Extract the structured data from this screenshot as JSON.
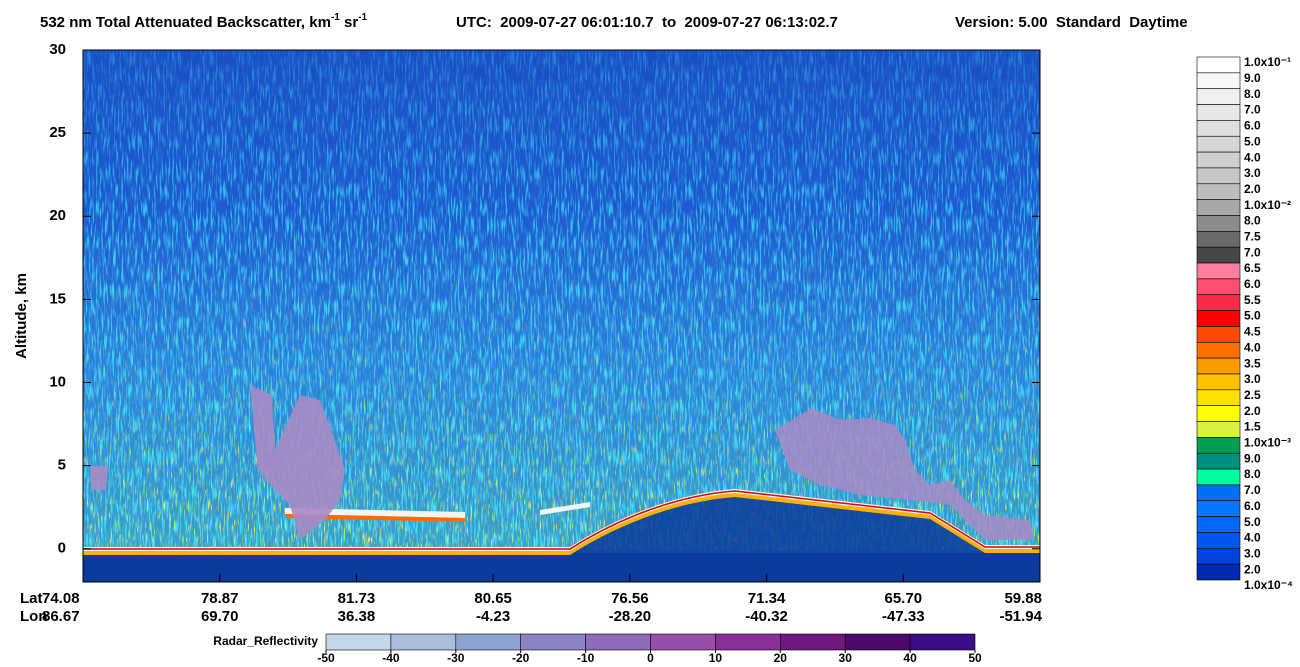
{
  "chart_data": {
    "type": "heatmap",
    "title_parts": [
      "532 nm Total Attenuated Backscatter, km",
      "-1",
      " sr",
      "-1"
    ],
    "time_range": "UTC:  2009-07-27 06:01:10.7  to  2009-07-27 06:13:02.7",
    "version": "Version: 5.00  Standard  Daytime",
    "ylabel": "Altitude, km",
    "ylim": [
      -2,
      30
    ],
    "yticks": [
      0,
      5,
      10,
      15,
      20,
      25,
      30
    ],
    "x_ticks": {
      "lat_label": "Lat",
      "lon_label": "Lon",
      "lat": [
        "74.08",
        "78.87",
        "81.73",
        "80.65",
        "76.56",
        "71.34",
        "65.70",
        "59.88"
      ],
      "lon": [
        "86.67",
        "69.70",
        "36.38",
        "-4.23",
        "-28.20",
        "-40.32",
        "-47.33",
        "-51.94"
      ]
    },
    "colorbar": {
      "labels": [
        "1.0x10⁻¹",
        "9.0",
        "8.0",
        "7.0",
        "6.0",
        "5.0",
        "4.0",
        "3.0",
        "2.0",
        "1.0x10⁻²",
        "8.0",
        "7.5",
        "7.0",
        "6.5",
        "6.0",
        "5.5",
        "5.0",
        "4.5",
        "4.0",
        "3.5",
        "3.0",
        "2.5",
        "2.0",
        "1.5",
        "1.0x10⁻³",
        "9.0",
        "8.0",
        "7.0",
        "6.0",
        "5.0",
        "4.0",
        "3.0",
        "2.0",
        "1.0x10⁻⁴"
      ],
      "colors": [
        "#ffffff",
        "#f7f7f7",
        "#efefef",
        "#e7e7e7",
        "#dfdfdf",
        "#d7d7d7",
        "#cfcfcf",
        "#c7c7c7",
        "#bdbdbd",
        "#a8a8a8",
        "#8c8c8c",
        "#6a6a6a",
        "#474747",
        "#ff7fa0",
        "#ff4f70",
        "#ff2a48",
        "#ff0000",
        "#ff4a00",
        "#ff7000",
        "#ff9a00",
        "#ffc000",
        "#ffe000",
        "#ffff00",
        "#d8f040",
        "#00a050",
        "#009080",
        "#00ffa0",
        "#0070f0",
        "#0078ff",
        "#0068f8",
        "#0058f0",
        "#0044e0",
        "#0028b0"
      ]
    },
    "radar_bar": {
      "label": "Radar_Reflectivity",
      "ticks": [
        -50,
        -40,
        -30,
        -20,
        -10,
        0,
        10,
        20,
        30,
        40,
        50
      ],
      "colors": [
        "#c6d6ea",
        "#a9bedd",
        "#8fa3d2",
        "#8b84c4",
        "#8e6cb9",
        "#9450ab",
        "#8a2e98",
        "#6e1880",
        "#4c0a6c",
        "#3a0c86"
      ]
    }
  }
}
